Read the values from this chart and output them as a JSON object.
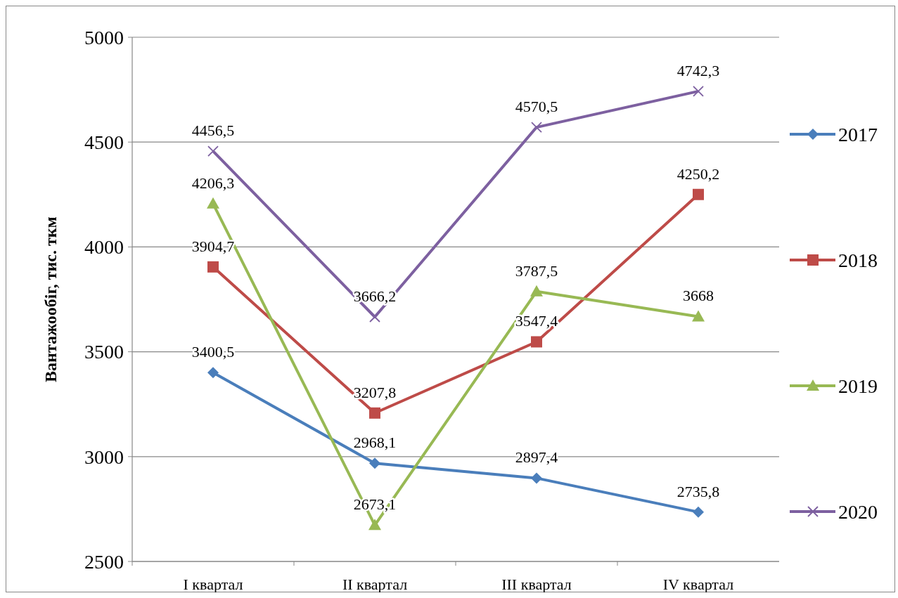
{
  "chart_data": {
    "type": "line",
    "ylabel": "Вантажообіг, тис. ткм",
    "categories": [
      "I квартал",
      "II квартал",
      "III квартал",
      "IV квартал"
    ],
    "ylim": [
      2500,
      5000
    ],
    "yticks": [
      2500,
      3000,
      3500,
      4000,
      4500,
      5000
    ],
    "grid": "y",
    "legend": "right",
    "series": [
      {
        "name": "2017",
        "color": "#4a7ebb",
        "marker": "diamond",
        "values": [
          3400.5,
          2968.1,
          2897.4,
          2735.8
        ],
        "value_labels": [
          "3400,5",
          "2968,1",
          "2897,4",
          "2735,8"
        ]
      },
      {
        "name": "2018",
        "color": "#be4b48",
        "marker": "square",
        "values": [
          3904.7,
          3207.8,
          3547.4,
          4250.2
        ],
        "value_labels": [
          "3904,7",
          "3207,8",
          "3547,4",
          "4250,2"
        ]
      },
      {
        "name": "2019",
        "color": "#98b954",
        "marker": "triangle",
        "values": [
          4206.3,
          2673.1,
          3787.5,
          3668
        ],
        "value_labels": [
          "4206,3",
          "2673,1",
          "3787,5",
          "3668"
        ]
      },
      {
        "name": "2020",
        "color": "#7d60a0",
        "marker": "cross",
        "values": [
          4456.5,
          3666.2,
          4570.5,
          4742.3
        ],
        "value_labels": [
          "4456,5",
          "3666,2",
          "4570,5",
          "4742,3"
        ]
      }
    ]
  }
}
